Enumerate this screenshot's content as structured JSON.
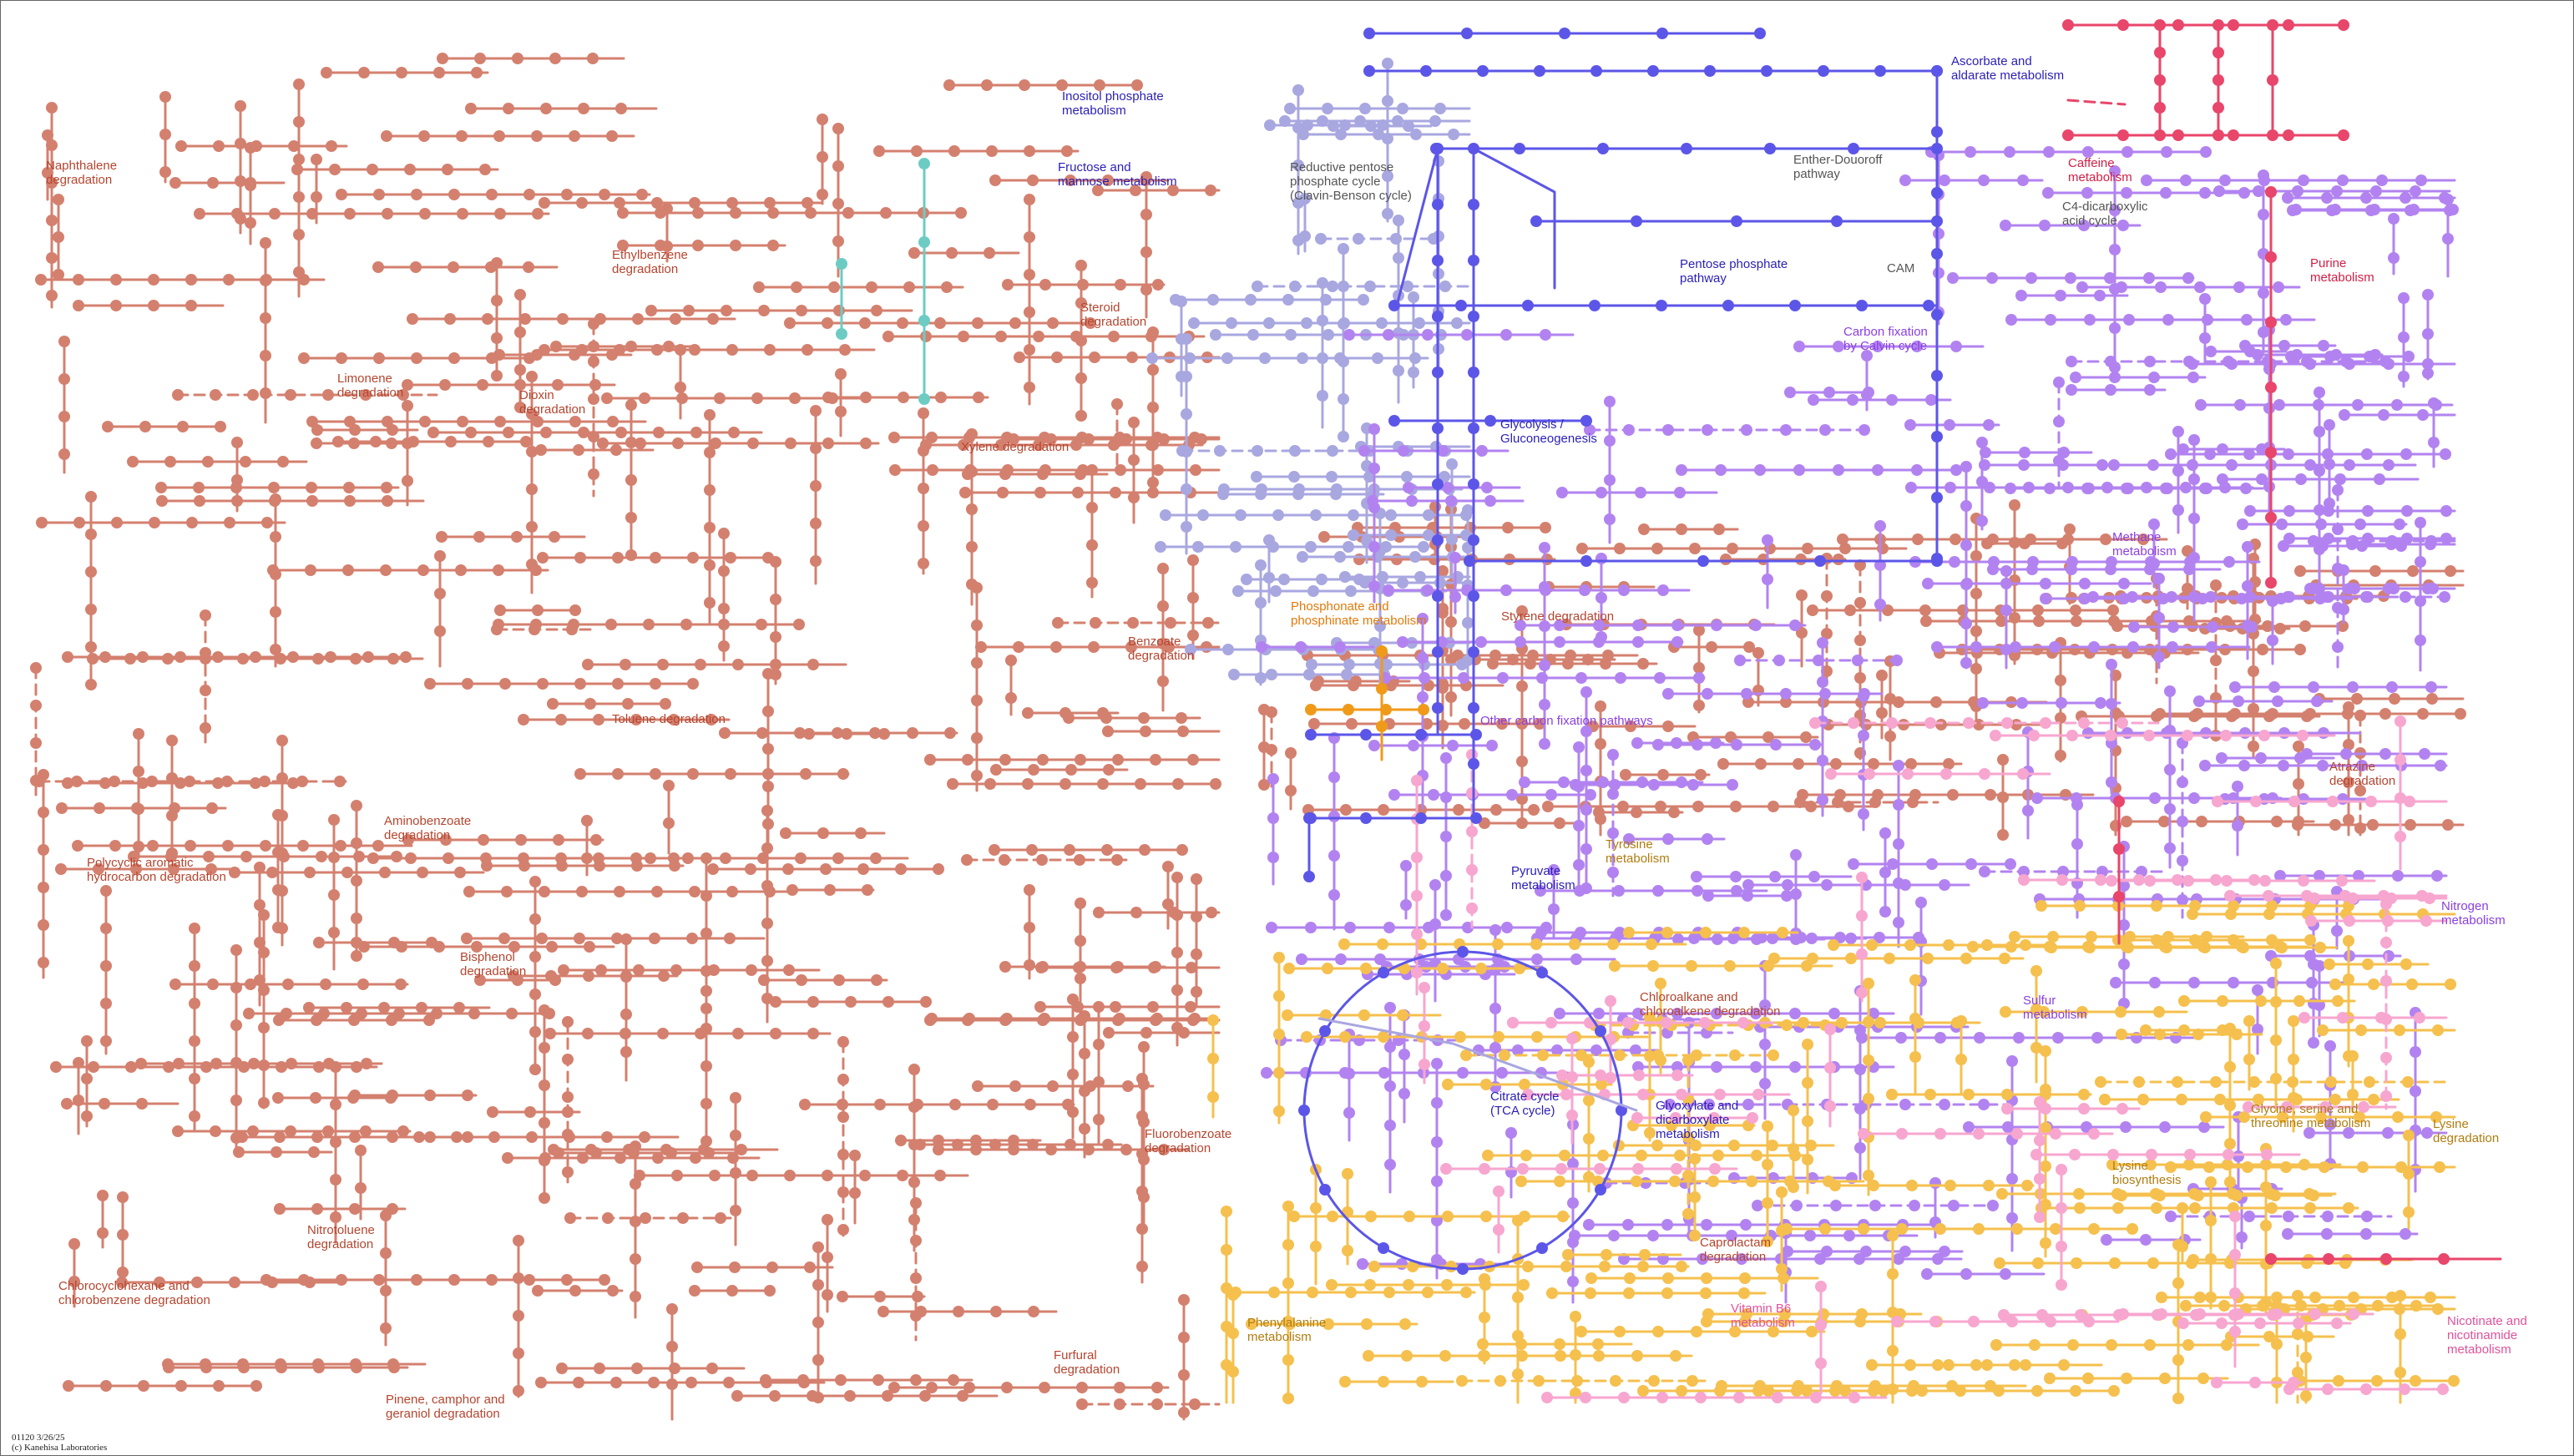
{
  "map": {
    "id_label": "01120 3/26/25",
    "copyright": "(c) Kanehisa Laboratories",
    "colors": {
      "xenobiotics": "#d4806f",
      "xenobiotics_text": "#b5452f",
      "carbohydrate": "#5c56e8",
      "carbohydrate_text": "#2a1fb5",
      "carbohydrate_light": "#a9a7e0",
      "energy": "#b283f0",
      "energy_text": "#8b3fe0",
      "amino_acid": "#f5c04e",
      "amino_acid_text": "#b07d10",
      "cofactor": "#f7a6cf",
      "cofactor_text": "#e0529a",
      "nucleotide": "#e8466a",
      "nucleotide_text": "#d11f45",
      "orange": "#f09a1a",
      "orange_text": "#e07a0a",
      "teal": "#6cccc4",
      "grey_text": "#555555"
    },
    "labels": [
      {
        "name": "label-naphthalene-degradation",
        "text": "Naphthalene\ndegradation",
        "group": "xenobiotics"
      },
      {
        "name": "label-ethylbenzene-degradation",
        "text": "Ethylbenzene\ndegradation",
        "group": "xenobiotics"
      },
      {
        "name": "label-limonene-degradation",
        "text": "Limonene\ndegradation",
        "group": "xenobiotics"
      },
      {
        "name": "label-dioxin-degradation",
        "text": "Dioxin\ndegradation",
        "group": "xenobiotics"
      },
      {
        "name": "label-steroid-degradation",
        "text": "Steroid\ndegradation",
        "group": "xenobiotics"
      },
      {
        "name": "label-xylene-degradation",
        "text": "Xylene degradation",
        "group": "xenobiotics"
      },
      {
        "name": "label-benzoate-degradation",
        "text": "Benzoate\ndegradation",
        "group": "xenobiotics"
      },
      {
        "name": "label-toluene-degradation",
        "text": "Toluene degradation",
        "group": "xenobiotics"
      },
      {
        "name": "label-aminobenzoate-degradation",
        "text": "Aminobenzoate\ndegradation",
        "group": "xenobiotics"
      },
      {
        "name": "label-pah-degradation",
        "text": "Polycyclic aromatic\nhydrocarbon degradation",
        "group": "xenobiotics"
      },
      {
        "name": "label-bisphenol-degradation",
        "text": "Bisphenol\ndegradation",
        "group": "xenobiotics"
      },
      {
        "name": "label-nitrotoluene-degradation",
        "text": "Nitrotoluene\ndegradation",
        "group": "xenobiotics"
      },
      {
        "name": "label-chlorocyclohexane-degradation",
        "text": "Chlorocyclohexane and\nchlorobenzene degradation",
        "group": "xenobiotics"
      },
      {
        "name": "label-pinene-degradation",
        "text": "Pinene, camphor and\ngeraniol degradation",
        "group": "xenobiotics"
      },
      {
        "name": "label-furfural-degradation",
        "text": "Furfural\ndegradation",
        "group": "xenobiotics"
      },
      {
        "name": "label-fluorobenzoate-degradation",
        "text": "Fluorobenzoate\ndegradation",
        "group": "xenobiotics"
      },
      {
        "name": "label-styrene-degradation",
        "text": "Styrene degradation",
        "group": "xenobiotics"
      },
      {
        "name": "label-chloroalkane-degradation",
        "text": "Chloroalkane and\nchloroalkene degradation",
        "group": "xenobiotics"
      },
      {
        "name": "label-caprolactam-degradation",
        "text": "Caprolactam\ndegradation",
        "group": "xenobiotics"
      },
      {
        "name": "label-atrazine-degradation",
        "text": "Atrazine\ndegradation",
        "group": "xenobiotics"
      },
      {
        "name": "label-inositol-phosphate",
        "text": "Inositol phosphate\nmetabolism",
        "group": "carbohydrate"
      },
      {
        "name": "label-fructose-mannose",
        "text": "Fructose and\nmannose metabolism",
        "group": "carbohydrate"
      },
      {
        "name": "label-reductive-pentose",
        "text": "Reductive pentose\nphosphate cycle\n(Clavin-Benson cycle)",
        "group": "grey"
      },
      {
        "name": "label-ascorbate-aldarate",
        "text": "Ascorbate and\naldarate metabolism",
        "group": "carbohydrate"
      },
      {
        "name": "label-entner-doudoroff",
        "text": "Enther-Douoroff\npathway",
        "group": "grey"
      },
      {
        "name": "label-pentose-phosphate",
        "text": "Pentose phosphate\npathway",
        "group": "carbohydrate"
      },
      {
        "name": "label-glycolysis",
        "text": "Glycolysis /\nGluconeogenesis",
        "group": "carbohydrate"
      },
      {
        "name": "label-pyruvate",
        "text": "Pyruvate\nmetabolism",
        "group": "carbohydrate"
      },
      {
        "name": "label-citrate-cycle",
        "text": "Citrate cycle\n(TCA cycle)",
        "group": "carbohydrate"
      },
      {
        "name": "label-glyoxylate",
        "text": "Glyoxylate and\ndicarboxylate\nmetabolism",
        "group": "carbohydrate"
      },
      {
        "name": "label-caffeine",
        "text": "Caffeine\nmetabolism",
        "group": "nucleotide"
      },
      {
        "name": "label-c4-dicarboxylic",
        "text": "C4-dicarboxylic\nacid cycle",
        "group": "grey"
      },
      {
        "name": "label-cam",
        "text": "CAM",
        "group": "grey"
      },
      {
        "name": "label-purine",
        "text": "Purine\nmetabolism",
        "group": "nucleotide"
      },
      {
        "name": "label-calvin-carbon-fixation",
        "text": "Carbon fixation\nby Calvin cycle",
        "group": "energy"
      },
      {
        "name": "label-methane",
        "text": "Methane\nmetabolism",
        "group": "energy"
      },
      {
        "name": "label-other-carbon-fixation",
        "text": "Other carbon fixation pathways",
        "group": "energy"
      },
      {
        "name": "label-nitrogen",
        "text": "Nitrogen\nmetabolism",
        "group": "energy"
      },
      {
        "name": "label-sulfur",
        "text": "Sulfur\nmetabolism",
        "group": "energy"
      },
      {
        "name": "label-phosphonate",
        "text": "Phosphonate and\nphosphinate metabolism",
        "group": "orange"
      },
      {
        "name": "label-tyrosine",
        "text": "Tyrosine\nmetabolism",
        "group": "amino_acid"
      },
      {
        "name": "label-phenylalanine",
        "text": "Phenylalanine\nmetabolism",
        "group": "amino_acid"
      },
      {
        "name": "label-glycine-serine-threonine",
        "text": "Glycine, serine and\nthreonine metabolism",
        "group": "amino_acid"
      },
      {
        "name": "label-lysine-degradation",
        "text": "Lysine\ndegradation",
        "group": "amino_acid"
      },
      {
        "name": "label-lysine-biosynthesis",
        "text": "Lysine\nbiosynthesis",
        "group": "amino_acid"
      },
      {
        "name": "label-vitamin-b6",
        "text": "Vitamin B6\nmetabolism",
        "group": "cofactor"
      },
      {
        "name": "label-nicotinate",
        "text": "Nicotinate and\nnicotinamide\nmetabolism",
        "group": "cofactor"
      }
    ]
  }
}
